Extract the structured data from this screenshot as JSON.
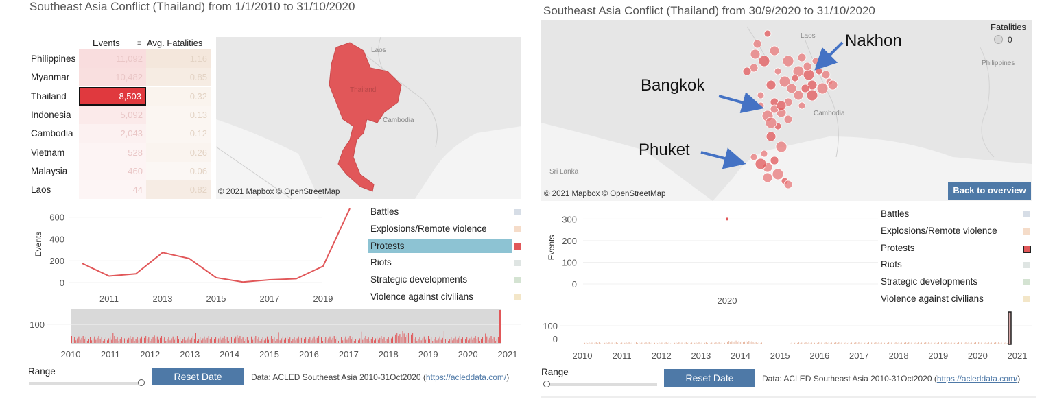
{
  "left": {
    "title": "Southeast Asia Conflict (Thailand) from 1/1/2010 to 31/10/2020",
    "table": {
      "col_events": "Events",
      "col_fatalities": "Avg. Fatalities",
      "rows": [
        {
          "country": "Philippines",
          "events": "11,092",
          "fatalities": "1.16"
        },
        {
          "country": "Myanmar",
          "events": "10,482",
          "fatalities": "0.85"
        },
        {
          "country": "Thailand",
          "events": "8,503",
          "fatalities": "0.32"
        },
        {
          "country": "Indonesia",
          "events": "5,092",
          "fatalities": "0.13"
        },
        {
          "country": "Cambodia",
          "events": "2,043",
          "fatalities": "0.12"
        },
        {
          "country": "Vietnam",
          "events": "528",
          "fatalities": "0.26"
        },
        {
          "country": "Malaysia",
          "events": "460",
          "fatalities": "0.06"
        },
        {
          "country": "Laos",
          "events": "44",
          "fatalities": "0.82"
        }
      ]
    },
    "map": {
      "labels": {
        "laos": "Laos",
        "thailand": "Thailand",
        "cambodia": "Cambodia"
      },
      "copyright": "© 2021 Mapbox © OpenStreetMap"
    },
    "legend": [
      "Battles",
      "Explosions/Remote violence",
      "Protests",
      "Riots",
      "Strategic developments",
      "Violence against civilians"
    ],
    "legend_colors": [
      "#d6dde6",
      "#f5dcc9",
      "#e15759",
      "#dfe5e3",
      "#d4e3d2",
      "#f3e6c8"
    ],
    "selected_legend": "Protests",
    "range_label": "Range",
    "reset_button": "Reset Date",
    "source_prefix": "Data: ACLED Southeast Asia 2010-31Oct2020 (",
    "source_link": "https://acleddata.com/",
    "source_suffix": ")"
  },
  "right": {
    "title": "Southeast Asia Conflict (Thailand) from 30/9/2020 to 31/10/2020",
    "map": {
      "labels": {
        "laos": "Laos",
        "philippines": "Philippines",
        "cambodia": "Cambodia",
        "srilanka": "Sri Lanka"
      },
      "copyright": "© 2021 Mapbox © OpenStreetMap",
      "fatalities_legend_title": "Fatalities",
      "fatalities_legend_value": "0",
      "back_button": "Back to overview"
    },
    "annotations": {
      "nakhon": "Nakhon",
      "bangkok": "Bangkok",
      "phuket": "Phuket"
    },
    "legend": [
      "Battles",
      "Explosions/Remote violence",
      "Protests",
      "Riots",
      "Strategic developments",
      "Violence against civilians"
    ],
    "range_label": "Range",
    "reset_button": "Reset Date",
    "source_prefix": "Data: ACLED Southeast Asia 2010-31Oct2020 (",
    "source_link": "https://acleddata.com/",
    "source_suffix": ")"
  },
  "chart_data": [
    {
      "type": "line",
      "ylabel": "Events",
      "x": [
        2010,
        2011,
        2012,
        2013,
        2014,
        2015,
        2016,
        2017,
        2018,
        2019,
        2020
      ],
      "x_tick_labels": [
        "2011",
        "2013",
        "2015",
        "2017",
        "2019"
      ],
      "y_tick_labels": [
        "0",
        "200",
        "400",
        "600"
      ],
      "ylim": [
        0,
        680
      ],
      "series": [
        {
          "name": "Protests",
          "values": [
            175,
            60,
            80,
            275,
            220,
            45,
            5,
            25,
            35,
            150,
            680
          ]
        }
      ]
    },
    {
      "type": "bar",
      "x_tick_labels": [
        "2010",
        "2011",
        "2012",
        "2013",
        "2014",
        "2015",
        "2016",
        "2017",
        "2018",
        "2019",
        "2020",
        "2021"
      ],
      "y_tick_labels": [
        "100"
      ],
      "selection": [
        "2010",
        "2020"
      ]
    },
    {
      "type": "scatter",
      "ylabel": "Events",
      "x_tick_labels": [
        "2020"
      ],
      "y_tick_labels": [
        "0",
        "100",
        "200",
        "300"
      ],
      "ylim": [
        0,
        320
      ],
      "series": [
        {
          "name": "Protests",
          "values": [
            300
          ]
        }
      ]
    },
    {
      "type": "bar",
      "x_tick_labels": [
        "2010",
        "2011",
        "2012",
        "2013",
        "2014",
        "2015",
        "2016",
        "2017",
        "2018",
        "2019",
        "2020",
        "2021"
      ],
      "y_tick_labels": [
        "100",
        "0"
      ]
    }
  ]
}
